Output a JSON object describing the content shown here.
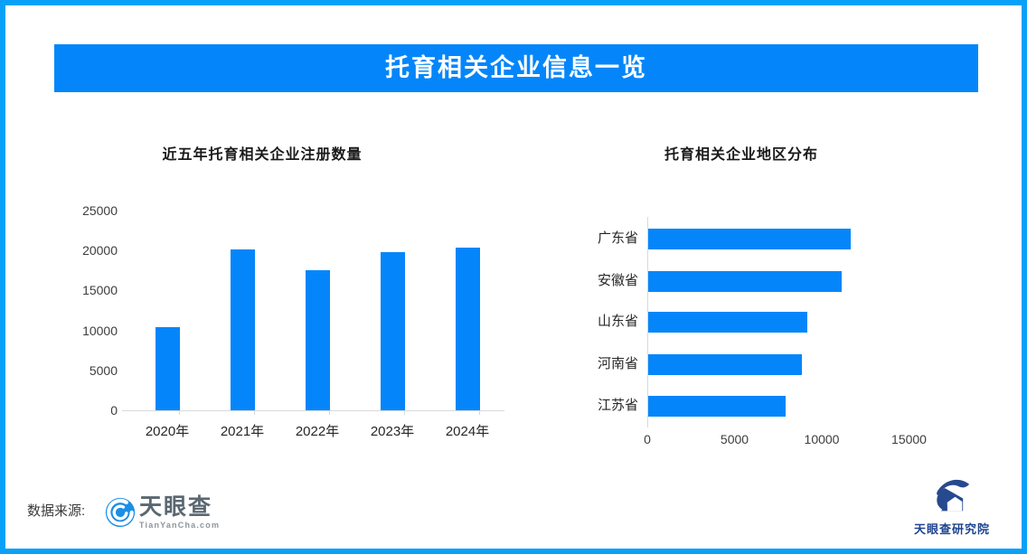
{
  "banner": {
    "title": "托育相关企业信息一览"
  },
  "colors": {
    "border": "#08a1f7",
    "banner_bg": "#0486fa",
    "bar": "#0486fa",
    "axis_line": "#d9d9d9",
    "banner_text": "#ffffff",
    "tianyancha_icon_blue": "#1b8fe6",
    "institute_navy": "#27498f"
  },
  "footer": {
    "source_label": "数据来源:",
    "tianyancha": {
      "name": "天眼查",
      "domain": "TianYanCha.com"
    },
    "institute": {
      "name": "天眼查研究院"
    }
  },
  "chart_data": [
    {
      "type": "bar",
      "orientation": "vertical",
      "title": "近五年托育相关企业注册数量",
      "categories": [
        "2020年",
        "2021年",
        "2022年",
        "2023年",
        "2024年"
      ],
      "values": [
        10400,
        20100,
        17500,
        19800,
        20400
      ],
      "xlabel": "",
      "ylabel": "",
      "ylim": [
        0,
        25000
      ],
      "yticks": [
        25000,
        20000,
        15000,
        10000,
        5000,
        0
      ],
      "grid": false,
      "legend": "none",
      "bar_color": "#0486fa"
    },
    {
      "type": "bar",
      "orientation": "horizontal",
      "title": "托育相关企业地区分布",
      "categories": [
        "广东省",
        "安徽省",
        "山东省",
        "河南省",
        "江苏省"
      ],
      "values": [
        11600,
        11100,
        9100,
        8800,
        7900
      ],
      "xlabel": "",
      "ylabel": "",
      "xlim": [
        0,
        18000
      ],
      "xticks": [
        0,
        5000,
        10000,
        15000
      ],
      "grid": false,
      "legend": "none",
      "bar_color": "#0486fa"
    }
  ]
}
